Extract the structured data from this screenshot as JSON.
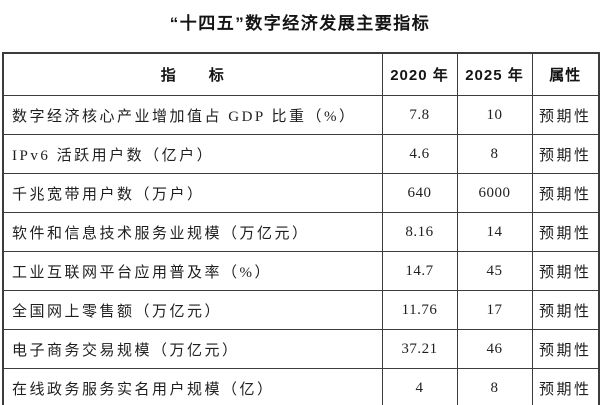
{
  "title": "“十四五”数字经济发展主要指标",
  "table": {
    "headers": {
      "indicator": "指　　标",
      "y2020": "2020 年",
      "y2025": "2025 年",
      "attribute": "属性"
    },
    "rows": [
      {
        "indicator": "数字经济核心产业增加值占 GDP 比重（%）",
        "y2020": "7.8",
        "y2025": "10",
        "attribute": "预期性"
      },
      {
        "indicator": "IPv6 活跃用户数（亿户）",
        "y2020": "4.6",
        "y2025": "8",
        "attribute": "预期性"
      },
      {
        "indicator": "千兆宽带用户数（万户）",
        "y2020": "640",
        "y2025": "6000",
        "attribute": "预期性"
      },
      {
        "indicator": "软件和信息技术服务业规模（万亿元）",
        "y2020": "8.16",
        "y2025": "14",
        "attribute": "预期性"
      },
      {
        "indicator": "工业互联网平台应用普及率（%）",
        "y2020": "14.7",
        "y2025": "45",
        "attribute": "预期性"
      },
      {
        "indicator": "全国网上零售额（万亿元）",
        "y2020": "11.76",
        "y2025": "17",
        "attribute": "预期性"
      },
      {
        "indicator": "电子商务交易规模（万亿元）",
        "y2020": "37.21",
        "y2025": "46",
        "attribute": "预期性"
      },
      {
        "indicator": "在线政务服务实名用户规模（亿）",
        "y2020": "4",
        "y2025": "8",
        "attribute": "预期性"
      }
    ],
    "colors": {
      "border": "#3c3c3c",
      "text": "#1f1f1f",
      "background": "#ffffff"
    }
  }
}
